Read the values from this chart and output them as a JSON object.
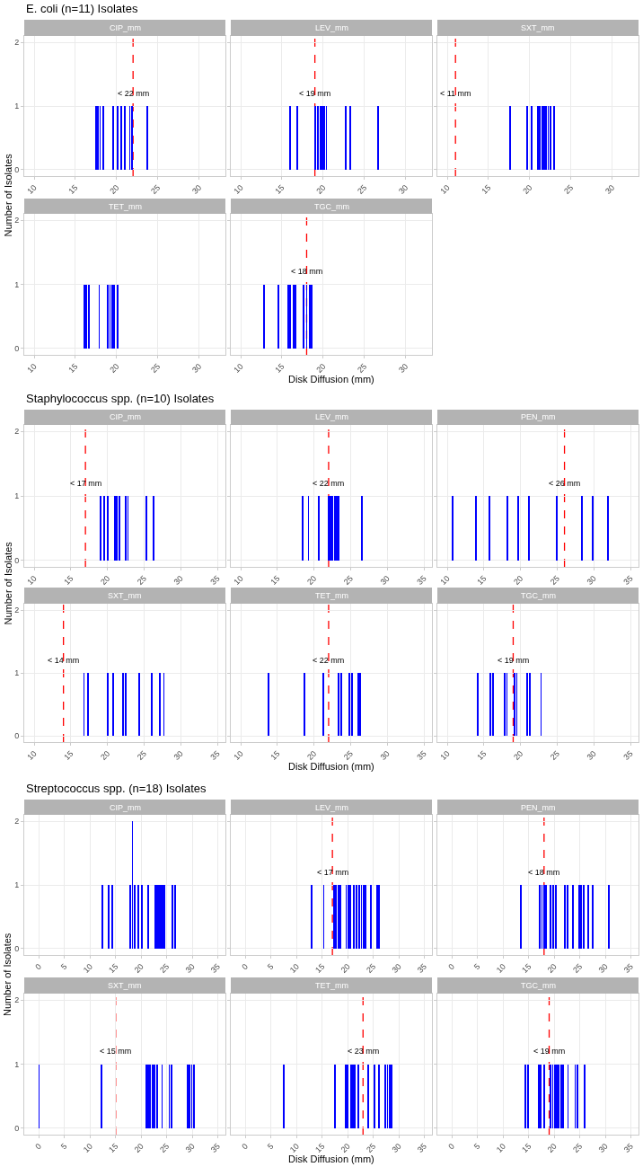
{
  "chart_data": [
    {
      "type": "bar",
      "title": "CIP_mm",
      "annotations": [
        "E. coli (n=11) Isolates"
      ],
      "ylabel": "Number of Isolates",
      "x": [
        17.5,
        17.75,
        18.0,
        18.4,
        19.6,
        20.1,
        20.6,
        21.0,
        21.6,
        21.9,
        23.7
      ],
      "values": [
        1,
        1,
        1,
        1,
        1,
        1,
        1,
        1,
        1,
        1,
        1
      ],
      "color": "#0000ff",
      "xlim": [
        8.8,
        33.2
      ],
      "xticks": [
        10,
        15,
        20,
        25,
        30
      ],
      "ylim": [
        -0.1,
        2.1
      ],
      "yticks": [
        0,
        1,
        2
      ],
      "grid": true,
      "ref_lines": [
        {
          "axis": "x",
          "value": 22,
          "label": "< 22 mm",
          "color": "#ff0000",
          "line_style": "dashed"
        }
      ]
    },
    {
      "type": "bar",
      "title": "LEV_mm",
      "x": [
        16.0,
        16.9,
        19.0,
        19.4,
        19.65,
        19.9,
        20.15,
        20.4,
        22.7,
        23.3,
        26.7
      ],
      "values": [
        1,
        1,
        1,
        1,
        1,
        1,
        1,
        1,
        1,
        1,
        1
      ],
      "color": "#0000ff",
      "xlim": [
        8.8,
        33.2
      ],
      "xticks": [
        10,
        15,
        20,
        25,
        30
      ],
      "ylim": [
        -0.1,
        2.1
      ],
      "yticks": [
        0,
        1,
        2
      ],
      "grid": true,
      "tick_labels": "x",
      "ref_lines": [
        {
          "axis": "x",
          "value": 19,
          "label": "< 19 mm",
          "color": "#ff0000",
          "line_style": "dashed"
        }
      ]
    },
    {
      "type": "bar",
      "title": "SXT_mm",
      "x": [
        17.6,
        19.7,
        20.2,
        21.0,
        21.25,
        21.5,
        21.75,
        22.0,
        22.25,
        22.5,
        22.95
      ],
      "values": [
        1,
        1,
        1,
        1,
        1,
        1,
        1,
        1,
        1,
        1,
        1
      ],
      "color": "#0000ff",
      "xlim": [
        8.8,
        33.2
      ],
      "xticks": [
        10,
        15,
        20,
        25,
        30
      ],
      "ylim": [
        -0.1,
        2.1
      ],
      "yticks": [
        0,
        1,
        2
      ],
      "grid": true,
      "tick_labels": "x",
      "ref_lines": [
        {
          "axis": "x",
          "value": 11,
          "label": "< 11 mm",
          "color": "#ff0000",
          "line_style": "dashed"
        }
      ]
    },
    {
      "type": "bar",
      "title": "TET_mm",
      "x": [
        16.1,
        16.35,
        16.6,
        17.9,
        18.9,
        19.2,
        19.45,
        19.7,
        20.1
      ],
      "values": [
        1,
        1,
        1,
        1,
        1,
        1,
        1,
        1,
        1
      ],
      "color": "#0000ff",
      "xlim": [
        8.8,
        33.2
      ],
      "xticks": [
        10,
        15,
        20,
        25,
        30
      ],
      "ylim": [
        -0.1,
        2.1
      ],
      "yticks": [
        0,
        1,
        2
      ],
      "grid": true
    },
    {
      "type": "bar",
      "title": "TGC_mm",
      "xlabel": "Disk Diffusion (mm)",
      "x": [
        12.8,
        14.6,
        15.75,
        16.0,
        16.4,
        16.65,
        17.6,
        18.0,
        18.4,
        18.65
      ],
      "values": [
        1,
        1,
        1,
        1,
        1,
        1,
        1,
        1,
        1,
        1
      ],
      "color": "#0000ff",
      "xlim": [
        8.8,
        33.2
      ],
      "xticks": [
        10,
        15,
        20,
        25,
        30
      ],
      "ylim": [
        -0.1,
        2.1
      ],
      "yticks": [
        0,
        1,
        2
      ],
      "grid": true,
      "tick_labels": "x",
      "ref_lines": [
        {
          "axis": "x",
          "value": 18,
          "label": "< 18 mm",
          "color": "#ff0000",
          "line_style": "dashed"
        }
      ]
    },
    {
      "type": "bar",
      "title": "CIP_mm",
      "annotations": [
        "Staphylococcus spp. (n=10) Isolates"
      ],
      "ylabel": "Number of Isolates",
      "x": [
        19.1,
        19.6,
        20.0,
        21.0,
        21.3,
        21.6,
        22.5,
        22.8,
        25.3,
        26.3
      ],
      "values": [
        1,
        1,
        1,
        1,
        1,
        1,
        1,
        1,
        1,
        1
      ],
      "color": "#0000ff",
      "xlim": [
        8.65,
        36.1
      ],
      "xticks": [
        10,
        15,
        20,
        25,
        30,
        35
      ],
      "ylim": [
        -0.1,
        2.1
      ],
      "yticks": [
        0,
        1,
        2
      ],
      "grid": true,
      "ref_lines": [
        {
          "axis": "x",
          "value": 17,
          "label": "< 17 mm",
          "color": "#ff0000",
          "line_style": "dashed"
        }
      ]
    },
    {
      "type": "bar",
      "title": "LEV_mm",
      "x": [
        18.4,
        19.25,
        20.7,
        22.0,
        22.25,
        22.5,
        22.9,
        23.15,
        23.4,
        26.5
      ],
      "values": [
        1,
        1,
        1,
        1,
        1,
        1,
        1,
        1,
        1,
        1
      ],
      "color": "#0000ff",
      "xlim": [
        8.65,
        36.1
      ],
      "xticks": [
        10,
        15,
        20,
        25,
        30,
        35
      ],
      "ylim": [
        -0.1,
        2.1
      ],
      "yticks": [
        0,
        1,
        2
      ],
      "grid": true,
      "tick_labels": "x",
      "ref_lines": [
        {
          "axis": "x",
          "value": 22,
          "label": "< 22 mm",
          "color": "#ff0000",
          "line_style": "dashed"
        }
      ]
    },
    {
      "type": "bar",
      "title": "PEN_mm",
      "x": [
        10.7,
        13.9,
        15.8,
        18.2,
        19.7,
        21.2,
        25.0,
        28.4,
        29.9,
        31.9
      ],
      "values": [
        1,
        1,
        1,
        1,
        1,
        1,
        1,
        1,
        1,
        1
      ],
      "color": "#0000ff",
      "xlim": [
        8.65,
        36.1
      ],
      "xticks": [
        10,
        15,
        20,
        25,
        30,
        35
      ],
      "ylim": [
        -0.1,
        2.1
      ],
      "yticks": [
        0,
        1,
        2
      ],
      "grid": true,
      "tick_labels": "x",
      "ref_lines": [
        {
          "axis": "x",
          "value": 26,
          "label": "< 26 mm",
          "color": "#ff0000",
          "line_style": "dashed"
        }
      ]
    },
    {
      "type": "bar",
      "title": "SXT_mm",
      "x": [
        16.8,
        17.3,
        20.1,
        20.8,
        22.15,
        22.45,
        24.3,
        26.1,
        27.2,
        27.7
      ],
      "values": [
        1,
        1,
        1,
        1,
        1,
        1,
        1,
        1,
        1,
        1
      ],
      "color": "#0000ff",
      "xlim": [
        8.65,
        36.1
      ],
      "xticks": [
        10,
        15,
        20,
        25,
        30,
        35
      ],
      "ylim": [
        -0.1,
        2.1
      ],
      "yticks": [
        0,
        1,
        2
      ],
      "grid": true,
      "ref_lines": [
        {
          "axis": "x",
          "value": 14,
          "label": "< 14 mm",
          "color": "#ff0000",
          "line_style": "dashed"
        }
      ]
    },
    {
      "type": "bar",
      "title": "TET_mm",
      "xlabel": "Disk Diffusion (mm)",
      "x": [
        13.75,
        18.7,
        21.3,
        23.4,
        23.7,
        24.8,
        25.2,
        26.0,
        26.3
      ],
      "values": [
        1,
        1,
        1,
        1,
        1,
        1,
        1,
        1,
        1
      ],
      "color": "#0000ff",
      "xlim": [
        8.65,
        36.1
      ],
      "xticks": [
        10,
        15,
        20,
        25,
        30,
        35
      ],
      "ylim": [
        -0.1,
        2.1
      ],
      "yticks": [
        0,
        1,
        2
      ],
      "grid": true,
      "tick_labels": "x",
      "ref_lines": [
        {
          "axis": "x",
          "value": 22,
          "label": "< 22 mm",
          "color": "#ff0000",
          "line_style": "dashed"
        }
      ]
    },
    {
      "type": "bar",
      "title": "TGC_mm",
      "x": [
        14.2,
        15.9,
        16.2,
        17.85,
        18.15,
        19.2,
        19.5,
        20.9,
        21.3,
        22.8
      ],
      "values": [
        1,
        1,
        1,
        1,
        1,
        1,
        1,
        1,
        1,
        1
      ],
      "color": "#0000ff",
      "xlim": [
        8.65,
        36.1
      ],
      "xticks": [
        10,
        15,
        20,
        25,
        30,
        35
      ],
      "ylim": [
        -0.1,
        2.1
      ],
      "yticks": [
        0,
        1,
        2
      ],
      "grid": true,
      "tick_labels": "x",
      "ref_lines": [
        {
          "axis": "x",
          "value": 19,
          "label": "< 19 mm",
          "color": "#ff0000",
          "line_style": "dashed"
        }
      ]
    },
    {
      "type": "bar",
      "title": "CIP_mm",
      "annotations": [
        "Streptococcus spp. (n=18) Isolates"
      ],
      "ylabel": "Number of Isolates",
      "x": [
        12.4,
        13.6,
        14.4,
        17.8,
        18.3,
        18.8,
        19.5,
        20.1,
        21.4,
        22.8,
        23.15,
        23.5,
        23.85,
        24.2,
        24.55,
        26.1,
        26.6
      ],
      "values": [
        1,
        1,
        1,
        1,
        2,
        1,
        1,
        1,
        1,
        1,
        1,
        1,
        1,
        1,
        1,
        1,
        1
      ],
      "color": "#0000ff",
      "xlim": [
        -2.9,
        36.5
      ],
      "xticks": [
        0,
        5,
        10,
        15,
        20,
        25,
        30,
        35
      ],
      "ylim": [
        -0.1,
        2.1
      ],
      "yticks": [
        0,
        1,
        2
      ],
      "grid": true
    },
    {
      "type": "bar",
      "title": "LEV_mm",
      "x": [
        13.0,
        15.3,
        17.3,
        17.7,
        18.2,
        18.6,
        19.7,
        20.1,
        20.5,
        21.2,
        21.7,
        22.3,
        22.7,
        23.1,
        23.5,
        24.5,
        25.7,
        26.1
      ],
      "values": [
        1,
        1,
        1,
        1,
        1,
        1,
        1,
        1,
        1,
        1,
        1,
        1,
        1,
        1,
        1,
        1,
        1,
        1
      ],
      "color": "#0000ff",
      "xlim": [
        -2.9,
        36.5
      ],
      "xticks": [
        0,
        5,
        10,
        15,
        20,
        25,
        30,
        35
      ],
      "ylim": [
        -0.1,
        2.1
      ],
      "yticks": [
        0,
        1,
        2
      ],
      "grid": true,
      "tick_labels": "x",
      "ref_lines": [
        {
          "axis": "x",
          "value": 17,
          "label": "< 17 mm",
          "color": "#ff0000",
          "line_style": "dashed"
        }
      ]
    },
    {
      "type": "bar",
      "title": "PEN_mm",
      "x": [
        13.4,
        17.2,
        17.6,
        18.0,
        18.4,
        19.2,
        19.85,
        20.25,
        22.0,
        22.6,
        23.7,
        24.9,
        25.3,
        25.8,
        26.7,
        27.6,
        30.7
      ],
      "values": [
        1,
        1,
        1,
        1,
        1,
        1,
        1,
        1,
        1,
        1,
        1,
        1,
        1,
        1,
        1,
        1,
        1
      ],
      "color": "#0000ff",
      "xlim": [
        -2.9,
        36.5
      ],
      "xticks": [
        0,
        5,
        10,
        15,
        20,
        25,
        30,
        35
      ],
      "ylim": [
        -0.1,
        2.1
      ],
      "yticks": [
        0,
        1,
        2
      ],
      "grid": true,
      "tick_labels": "x",
      "ref_lines": [
        {
          "axis": "x",
          "value": 18,
          "label": "< 18 mm",
          "color": "#ff0000",
          "line_style": "dashed"
        }
      ]
    },
    {
      "type": "bar",
      "title": "SXT_mm",
      "x": [
        0.0,
        12.3,
        21.0,
        21.4,
        21.8,
        22.2,
        22.6,
        23.1,
        24.1,
        25.5,
        25.9,
        29.1,
        29.5,
        29.9,
        30.4
      ],
      "values": [
        1,
        1,
        1,
        1,
        1,
        1,
        1,
        1,
        1,
        1,
        1,
        1,
        1,
        1,
        1
      ],
      "color": "#0000ff",
      "xlim": [
        -2.9,
        36.5
      ],
      "xticks": [
        0,
        5,
        10,
        15,
        20,
        25,
        30,
        35
      ],
      "ylim": [
        -0.1,
        2.1
      ],
      "yticks": [
        0,
        1,
        2
      ],
      "grid": true,
      "ref_lines": [
        {
          "axis": "x",
          "value": 15,
          "label": "< 15 mm",
          "color": "#ff0000",
          "line_style": "dashed"
        }
      ]
    },
    {
      "type": "bar",
      "title": "TET_mm",
      "xlabel": "Disk Diffusion (mm)",
      "x": [
        7.4,
        17.5,
        19.6,
        20.0,
        20.6,
        21.0,
        21.4,
        22.1,
        24.0,
        25.2,
        26.2,
        27.4,
        27.8,
        28.2,
        28.6
      ],
      "values": [
        1,
        1,
        1,
        1,
        1,
        1,
        1,
        1,
        1,
        1,
        1,
        1,
        1,
        1,
        1
      ],
      "color": "#0000ff",
      "xlim": [
        -2.9,
        36.5
      ],
      "xticks": [
        0,
        5,
        10,
        15,
        20,
        25,
        30,
        35
      ],
      "ylim": [
        -0.1,
        2.1
      ],
      "yticks": [
        0,
        1,
        2
      ],
      "grid": true,
      "tick_labels": "x",
      "ref_lines": [
        {
          "axis": "x",
          "value": 23,
          "label": "< 23 mm",
          "color": "#ff0000",
          "line_style": "dashed"
        }
      ]
    },
    {
      "type": "bar",
      "title": "TGC_mm",
      "x": [
        14.4,
        14.8,
        16.9,
        17.3,
        18.1,
        19.3,
        19.7,
        20.1,
        20.5,
        20.9,
        21.3,
        21.8,
        22.7,
        24.1,
        24.5,
        26.0
      ],
      "values": [
        1,
        1,
        1,
        1,
        1,
        1,
        1,
        1,
        1,
        1,
        1,
        1,
        1,
        1,
        1,
        1
      ],
      "color": "#0000ff",
      "xlim": [
        -2.9,
        36.5
      ],
      "xticks": [
        0,
        5,
        10,
        15,
        20,
        25,
        30,
        35
      ],
      "ylim": [
        -0.1,
        2.1
      ],
      "yticks": [
        0,
        1,
        2
      ],
      "grid": true,
      "tick_labels": "x",
      "ref_lines": [
        {
          "axis": "x",
          "value": 19,
          "label": "< 19 mm",
          "color": "#ff0000",
          "line_style": "dashed"
        }
      ]
    }
  ]
}
